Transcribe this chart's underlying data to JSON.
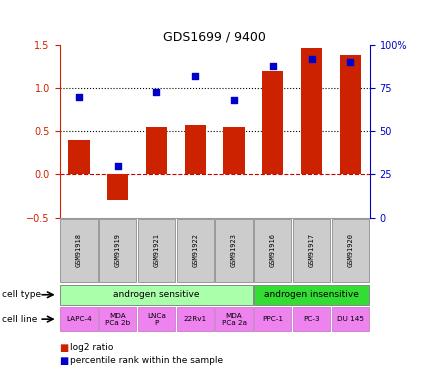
{
  "title": "GDS1699 / 9400",
  "samples": [
    "GSM91918",
    "GSM91919",
    "GSM91921",
    "GSM91922",
    "GSM91923",
    "GSM91916",
    "GSM91917",
    "GSM91920"
  ],
  "log2_ratio": [
    0.4,
    -0.3,
    0.55,
    0.57,
    0.55,
    1.2,
    1.47,
    1.38
  ],
  "pct_rank": [
    70,
    30,
    73,
    82,
    68,
    88,
    92,
    90
  ],
  "cell_type_groups": [
    {
      "label": "androgen sensitive",
      "start": 0,
      "end": 4,
      "color": "#aaffaa"
    },
    {
      "label": "androgen insensitive",
      "start": 5,
      "end": 7,
      "color": "#33dd33"
    }
  ],
  "cell_lines": [
    "LAPC-4",
    "MDA\nPCa 2b",
    "LNCa\nP",
    "22Rv1",
    "MDA\nPCa 2a",
    "PPC-1",
    "PC-3",
    "DU 145"
  ],
  "cell_line_color": "#ee82ee",
  "sample_box_color": "#cccccc",
  "bar_color": "#cc2200",
  "dot_color": "#0000cc",
  "ylim_left": [
    -0.5,
    1.5
  ],
  "ylim_right": [
    0,
    100
  ],
  "yticks_left": [
    -0.5,
    0.0,
    0.5,
    1.0,
    1.5
  ],
  "yticks_right": [
    0,
    25,
    50,
    75,
    100
  ],
  "hlines": [
    0.0,
    0.5,
    1.0
  ],
  "hline_styles": [
    "dashed",
    "dotted",
    "dotted"
  ],
  "hline_colors": [
    "#cc0000",
    "#000000",
    "#000000"
  ]
}
